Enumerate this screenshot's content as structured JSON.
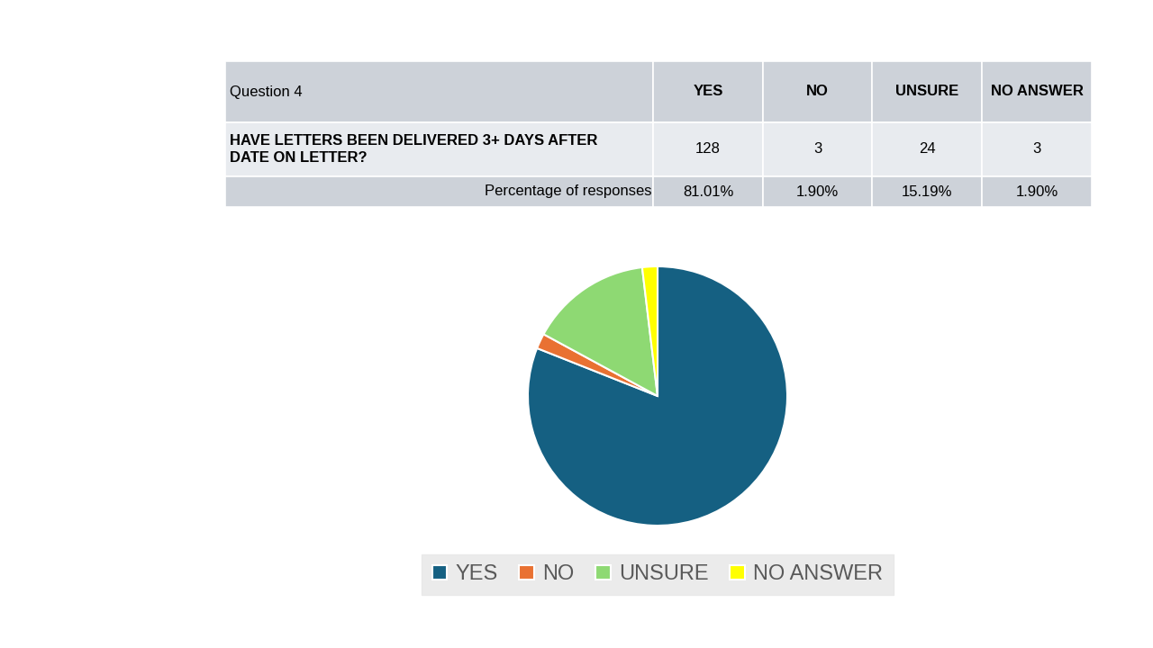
{
  "table": {
    "header": [
      "Question 4",
      "YES",
      "NO",
      "UNSURE",
      "NO ANSWER"
    ],
    "rows": [
      [
        "HAVE LETTERS BEEN DELIVERED 3+ DAYS AFTER DATE ON LETTER?",
        128,
        3,
        24,
        3
      ],
      [
        "Percentage of responses",
        "81.01%",
        "1.90%",
        "15.19%",
        "1.90%"
      ]
    ]
  },
  "chart_data": {
    "type": "pie",
    "categories": [
      "YES",
      "NO",
      "UNSURE",
      "NO ANSWER"
    ],
    "values": [
      128,
      3,
      24,
      3
    ],
    "colors": [
      "#156082",
      "#e97132",
      "#8ed973",
      "#ffff00"
    ],
    "legend": "lower center",
    "data_labels": false
  }
}
